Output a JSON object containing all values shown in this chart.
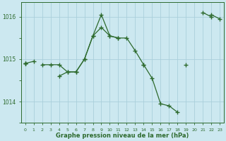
{
  "x": [
    0,
    1,
    2,
    3,
    4,
    5,
    6,
    7,
    8,
    9,
    10,
    11,
    12,
    13,
    14,
    15,
    16,
    17,
    18,
    19,
    20,
    21,
    22,
    23
  ],
  "series1": [
    1014.9,
    1014.95,
    null,
    null,
    null,
    null,
    null,
    null,
    null,
    null,
    null,
    null,
    null,
    null,
    1014.87,
    null,
    null,
    null,
    null,
    1014.87,
    null,
    null,
    1016.05,
    1015.95
  ],
  "series2": [
    1014.9,
    null,
    null,
    null,
    1014.6,
    1014.7,
    1014.7,
    1015.0,
    1015.55,
    1015.75,
    1015.55,
    1015.5,
    1015.5,
    1015.2,
    1014.87,
    1014.55,
    1013.95,
    1013.9,
    1013.75,
    null,
    null,
    1016.1,
    1016.0,
    null
  ],
  "series3": [
    1014.9,
    null,
    1014.87,
    1014.87,
    1014.87,
    1014.7,
    1014.7,
    1015.0,
    1015.55,
    1016.05,
    1015.55,
    1015.5,
    null,
    null,
    null,
    null,
    null,
    null,
    null,
    null,
    null,
    null,
    null,
    null
  ],
  "line_color": "#2d6a2d",
  "bg_color": "#cce8f0",
  "grid_major_color": "#aacfdb",
  "grid_minor_color": "#cce8f0",
  "xlabel": "Graphe pression niveau de la mer (hPa)",
  "xlim": [
    -0.5,
    23.5
  ],
  "ylim": [
    1013.5,
    1016.35
  ],
  "yticks": [
    1014,
    1015,
    1016
  ],
  "xticks": [
    0,
    1,
    2,
    3,
    4,
    5,
    6,
    7,
    8,
    9,
    10,
    11,
    12,
    13,
    14,
    15,
    16,
    17,
    18,
    19,
    20,
    21,
    22,
    23
  ],
  "marker": "+"
}
